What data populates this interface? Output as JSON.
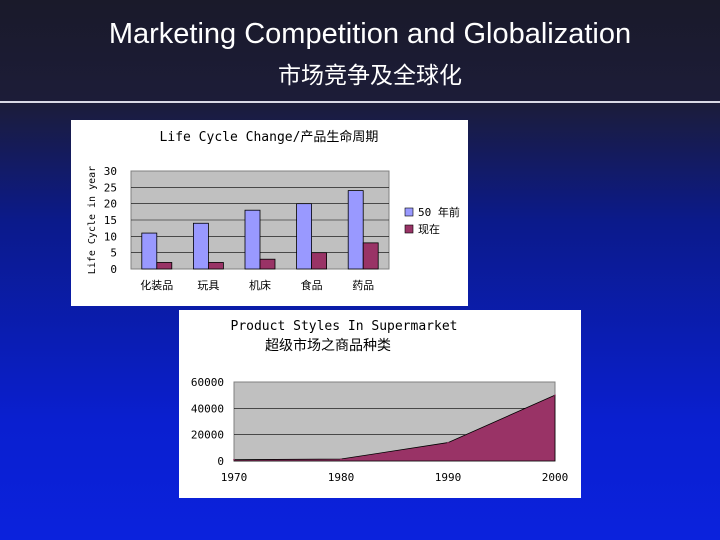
{
  "slide": {
    "title_en": "Marketing Competition and Globalization",
    "title_zh": "市场竞争及全球化"
  },
  "chart_data": [
    {
      "type": "bar",
      "title": "Life Cycle Change/产品生命周期",
      "ylabel": "Life Cycle in year",
      "categories": [
        "化装品",
        "玩具",
        "机床",
        "食品",
        "药品"
      ],
      "series": [
        {
          "name": "50 年前",
          "values": [
            11,
            14,
            18,
            20,
            24
          ],
          "color": "#9999ff"
        },
        {
          "name": "现在",
          "values": [
            2,
            2,
            3,
            5,
            8
          ],
          "color": "#993366"
        }
      ],
      "ylim": [
        0,
        30
      ],
      "yticks": [
        0,
        5,
        10,
        15,
        20,
        25,
        30
      ],
      "grid": true,
      "legend": "right",
      "plot_bg": "#c0c0c0"
    },
    {
      "type": "area",
      "title": "Product Styles In Supermarket",
      "subtitle": "超级市场之商品种类",
      "x": [
        1970,
        1980,
        1990,
        2000
      ],
      "series": [
        {
          "values": [
            1000,
            1500,
            14000,
            50000
          ],
          "color": "#993366"
        }
      ],
      "ylim": [
        0,
        60000
      ],
      "yticks": [
        0,
        20000,
        40000,
        60000
      ],
      "grid": true,
      "plot_bg": "#c0c0c0"
    }
  ]
}
